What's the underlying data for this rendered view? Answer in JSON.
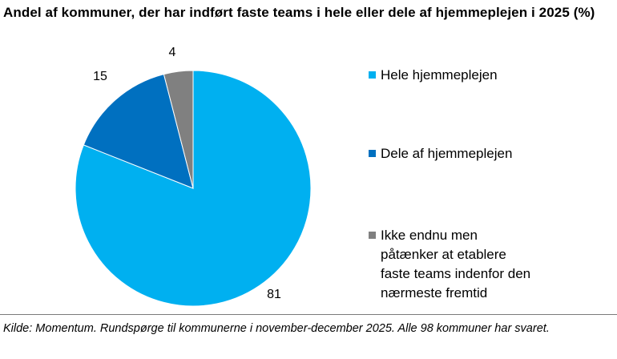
{
  "title": "Andel af kommuner, der har indført faste teams i hele eller dele af hjemmeplejen i 2025 (%)",
  "source": "Kilde: Momentum. Rundspørge til kommunerne i november-december 2025. Alle 98 kommuner har svaret.",
  "chart_data": {
    "type": "pie",
    "title": "Andel af kommuner, der har indført faste teams i hele eller dele af hjemmeplejen i 2025 (%)",
    "slices": [
      {
        "label": "Hele hjemmeplejen",
        "value": 81,
        "value_label": "81",
        "color": "#00B0F0"
      },
      {
        "label": "Dele af hjemmeplejen",
        "value": 15,
        "value_label": "15",
        "color": "#0070C0"
      },
      {
        "label": "Ikke endnu men\npåtænker at etablere\nfaste teams indenfor den\nnærmeste fremtid",
        "value": 4,
        "value_label": "4",
        "color": "#808080"
      }
    ],
    "start_angle": "12 o'clock",
    "direction": "clockwise",
    "legend_position": "right"
  }
}
